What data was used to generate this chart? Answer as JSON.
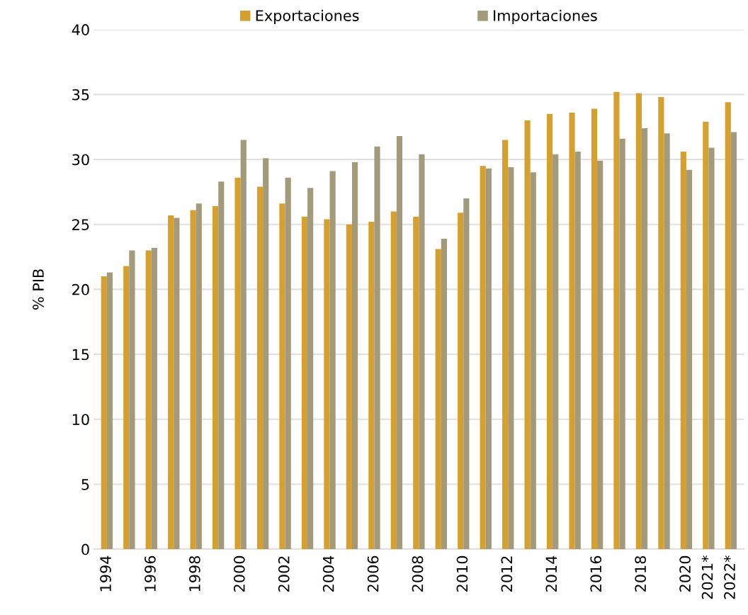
{
  "chart_data": {
    "type": "bar",
    "ylabel": "% PIB",
    "categories": [
      "1994",
      null,
      "1996",
      null,
      "1998",
      null,
      "2000",
      null,
      "2002",
      null,
      "2004",
      null,
      "2006",
      null,
      "2008",
      null,
      "2010",
      null,
      "2012",
      null,
      "2014",
      null,
      "2016",
      null,
      "2018",
      null,
      "2020",
      "2021*",
      "2022*"
    ],
    "series": [
      {
        "name": "Exportaciones",
        "color": "#d6a02e",
        "values": [
          21.0,
          21.8,
          23.0,
          25.7,
          26.1,
          26.4,
          28.6,
          27.9,
          26.6,
          25.6,
          25.4,
          25.0,
          25.2,
          26.0,
          25.6,
          23.1,
          25.9,
          29.5,
          31.5,
          33.0,
          33.5,
          33.6,
          33.9,
          35.2,
          35.1,
          34.8,
          30.6,
          32.9,
          34.4
        ]
      },
      {
        "name": "Importaciones",
        "color": "#a29a7b",
        "values": [
          21.3,
          23.0,
          23.2,
          25.5,
          26.6,
          28.3,
          31.5,
          30.1,
          28.6,
          27.8,
          29.1,
          29.8,
          31.0,
          31.8,
          30.4,
          23.9,
          27.0,
          29.3,
          29.4,
          29.0,
          30.4,
          30.6,
          29.9,
          31.6,
          32.4,
          32.0,
          29.2,
          30.9,
          32.1
        ]
      }
    ],
    "ylim": [
      0,
      40
    ],
    "yticks": [
      0,
      5,
      10,
      15,
      20,
      25,
      30,
      35,
      40
    ],
    "grid": "y",
    "legend": "top"
  }
}
